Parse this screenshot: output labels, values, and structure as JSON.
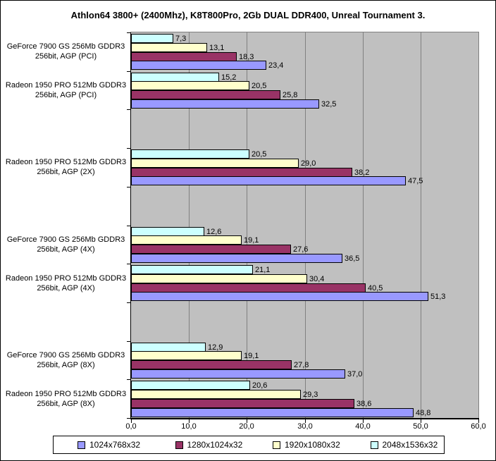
{
  "chart_data": {
    "type": "bar",
    "orientation": "horizontal",
    "title": "Athlon64 3800+ (2400Mhz), K8T800Pro, 2Gb DUAL DDR400, Unreal Tournament 3.",
    "xlim": [
      0,
      60
    ],
    "x_tick_labels": [
      "0,0",
      "10,0",
      "20,0",
      "30,0",
      "40,0",
      "50,0",
      "60,0"
    ],
    "decimal_separator": ",",
    "grid": true,
    "legend_position": "bottom",
    "colors": {
      "plot_background": "#C0C0C0",
      "gridline": "#808080",
      "bar_border": "#000000",
      "axis": "#000000"
    },
    "series": [
      {
        "name": "1024x768x32",
        "color": "#9999FF"
      },
      {
        "name": "1280x1024x32",
        "color": "#993366"
      },
      {
        "name": "1920x1080x32",
        "color": "#FFFFCC"
      },
      {
        "name": "2048x1536x32",
        "color": "#CCFFFF"
      }
    ],
    "categories": [
      {
        "label_lines": [
          "GeForce 7900 GS 256Mb GDDR3",
          "256bit, AGP (PCI)"
        ],
        "values": [
          23.4,
          18.3,
          13.1,
          7.3
        ]
      },
      {
        "label_lines": [
          "Radeon 1950 PRO 512Mb GDDR3",
          "256bit, AGP (PCI)"
        ],
        "values": [
          32.5,
          25.8,
          20.5,
          15.2
        ]
      },
      {
        "label_lines": [],
        "values": null
      },
      {
        "label_lines": [
          "Radeon 1950 PRO 512Mb GDDR3",
          "256bit, AGP (2X)"
        ],
        "values": [
          47.5,
          38.2,
          29.0,
          20.5
        ]
      },
      {
        "label_lines": [],
        "values": null
      },
      {
        "label_lines": [
          "GeForce 7900 GS 256Mb GDDR3",
          "256bit, AGP (4X)"
        ],
        "values": [
          36.5,
          27.6,
          19.1,
          12.6
        ]
      },
      {
        "label_lines": [
          "Radeon 1950 PRO 512Mb GDDR3",
          "256bit, AGP (4X)"
        ],
        "values": [
          51.3,
          40.5,
          30.4,
          21.1
        ]
      },
      {
        "label_lines": [],
        "values": null
      },
      {
        "label_lines": [
          "GeForce 7900 GS 256Mb GDDR3",
          "256bit, AGP (8X)"
        ],
        "values": [
          37.0,
          27.8,
          19.1,
          12.9
        ]
      },
      {
        "label_lines": [
          "Radeon 1950 PRO 512Mb GDDR3",
          "256bit, AGP (8X)"
        ],
        "values": [
          48.8,
          38.6,
          29.3,
          20.6
        ]
      }
    ]
  }
}
